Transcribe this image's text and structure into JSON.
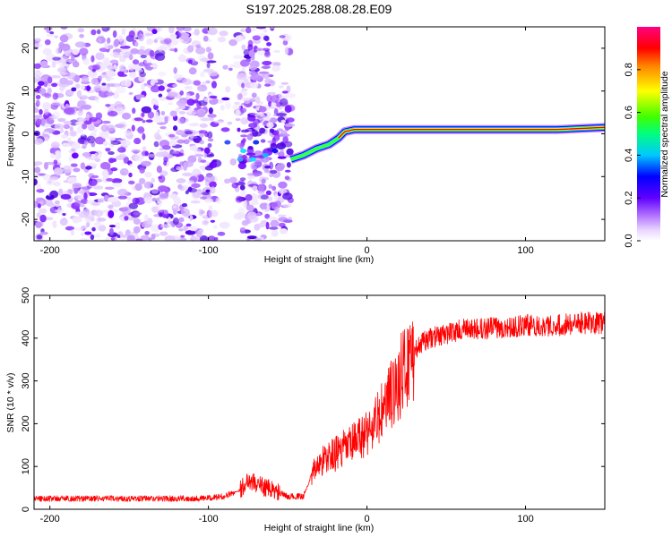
{
  "title": "S197.2025.288.08.28.E09",
  "chart_data": [
    {
      "type": "heatmap",
      "panel": "spectrogram",
      "xlabel": "Height of straight line (km)",
      "ylabel": "Frequency (Hz)",
      "xlim": [
        -210,
        150
      ],
      "ylim": [
        -25,
        25
      ],
      "xticks": [
        -200,
        -100,
        0,
        100
      ],
      "yticks": [
        -20,
        -10,
        0,
        10,
        20
      ],
      "colorbar": {
        "label": "Normalized spectral amplitude",
        "range": [
          0,
          1
        ],
        "ticks": [
          0.0,
          0.2,
          0.4,
          0.6,
          0.8
        ],
        "colors": [
          "#ffffff",
          "#d9b3ff",
          "#8000ff",
          "#0000ff",
          "#00ffff",
          "#00ff00",
          "#ffff00",
          "#ff8000",
          "#ff0000",
          "#ff0080"
        ]
      },
      "carrier_trace": [
        {
          "x": -48,
          "y": -6
        },
        {
          "x": -40,
          "y": -5
        },
        {
          "x": -32,
          "y": -3.5
        },
        {
          "x": -24,
          "y": -2.5
        },
        {
          "x": -18,
          "y": -1
        },
        {
          "x": -14,
          "y": 0.5
        },
        {
          "x": -8,
          "y": 1
        },
        {
          "x": 0,
          "y": 1
        },
        {
          "x": 15,
          "y": 1
        },
        {
          "x": 40,
          "y": 1
        },
        {
          "x": 80,
          "y": 1
        },
        {
          "x": 120,
          "y": 1
        },
        {
          "x": 150,
          "y": 1.5
        }
      ],
      "noise_regions": [
        {
          "x_from": -210,
          "x_to": -48,
          "note": "scattered low-amplitude noise"
        }
      ]
    },
    {
      "type": "line",
      "panel": "snr",
      "xlabel": "Height of straight line (km)",
      "ylabel": "SNR (10 * v/v)",
      "xlim": [
        -210,
        150
      ],
      "ylim": [
        0,
        500
      ],
      "xticks": [
        -200,
        -100,
        0,
        100
      ],
      "yticks": [
        0,
        100,
        200,
        300,
        400,
        500
      ],
      "color": "#ff0000",
      "series": [
        {
          "name": "SNR",
          "x": [
            -210,
            -180,
            -150,
            -120,
            -100,
            -90,
            -80,
            -75,
            -70,
            -60,
            -50,
            -40,
            -35,
            -30,
            -25,
            -20,
            -15,
            -10,
            -5,
            0,
            5,
            10,
            15,
            20,
            25,
            30,
            35,
            40,
            50,
            60,
            70,
            80,
            90,
            100,
            110,
            120,
            130,
            140,
            150
          ],
          "values": [
            25,
            25,
            25,
            25,
            26,
            30,
            45,
            70,
            60,
            45,
            30,
            30,
            80,
            110,
            120,
            130,
            140,
            150,
            165,
            180,
            200,
            230,
            265,
            300,
            340,
            370,
            390,
            400,
            410,
            420,
            420,
            425,
            425,
            430,
            430,
            430,
            435,
            435,
            435
          ]
        }
      ]
    }
  ]
}
